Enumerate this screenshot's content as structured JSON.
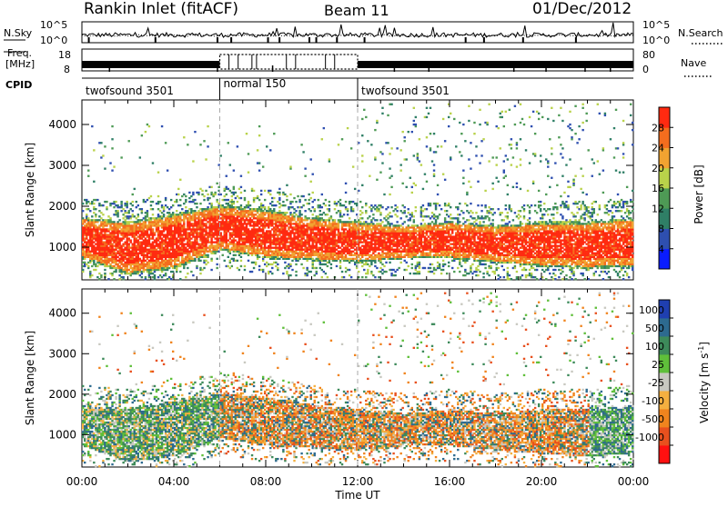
{
  "header": {
    "station": "Rankin Inlet (fitACF)",
    "beam": "Beam 11",
    "date": "01/Dec/2012"
  },
  "top_panels": {
    "nsky_label": "N.Sky",
    "nsearch_label": "N.Search",
    "log_top_tick": "10^5",
    "log_bottom_tick": "10^0",
    "freq_label_line1": "Freq.",
    "freq_label_line2": "[MHz]",
    "freq_ticks": [
      "18",
      "8"
    ],
    "nave_label": "Nave",
    "nave_ticks": [
      "80",
      "0"
    ],
    "cpid_label": "CPID",
    "modes": [
      {
        "name": "twofsound 3501",
        "start_hour": 0,
        "end_hour": 6
      },
      {
        "name": "normal 150",
        "start_hour": 6,
        "end_hour": 12
      },
      {
        "name": "twofsound 3501",
        "start_hour": 12,
        "end_hour": 24
      }
    ]
  },
  "chart_data": [
    {
      "type": "heatmap",
      "name": "power",
      "ylabel": "Slant Range [km]",
      "colorbar_label": "Power [dB]",
      "xlim_hours": [
        0,
        24
      ],
      "ylim_km": [
        200,
        4600
      ],
      "yticks": [
        1000,
        2000,
        3000,
        4000
      ],
      "colorbar_ticks": [
        "4",
        "8",
        "12",
        "16",
        "20",
        "24",
        "28"
      ],
      "colors": [
        "#0a1cff",
        "#2e4fb0",
        "#2f7f66",
        "#4e9a55",
        "#b9d24a",
        "#f1a331",
        "#f46d1e",
        "#ff2a10"
      ],
      "main_band": [
        {
          "hour": 0.0,
          "lo_km": 700,
          "hi_km": 1700
        },
        {
          "hour": 2.0,
          "lo_km": 300,
          "hi_km": 1600
        },
        {
          "hour": 4.0,
          "lo_km": 450,
          "hi_km": 1800
        },
        {
          "hour": 6.0,
          "lo_km": 900,
          "hi_km": 2000
        },
        {
          "hour": 8.0,
          "lo_km": 700,
          "hi_km": 1900
        },
        {
          "hour": 10.0,
          "lo_km": 650,
          "hi_km": 1700
        },
        {
          "hour": 12.0,
          "lo_km": 600,
          "hi_km": 1600
        },
        {
          "hour": 14.0,
          "lo_km": 700,
          "hi_km": 1500
        },
        {
          "hour": 16.0,
          "lo_km": 700,
          "hi_km": 1600
        },
        {
          "hour": 18.0,
          "lo_km": 600,
          "hi_km": 1500
        },
        {
          "hour": 20.0,
          "lo_km": 500,
          "hi_km": 1600
        },
        {
          "hour": 22.0,
          "lo_km": 450,
          "hi_km": 1600
        },
        {
          "hour": 24.0,
          "lo_km": 500,
          "hi_km": 1700
        }
      ]
    },
    {
      "type": "heatmap",
      "name": "velocity",
      "ylabel": "Slant Range [km]",
      "xlabel": "Time UT",
      "xticks": [
        "00:00",
        "04:00",
        "08:00",
        "12:00",
        "16:00",
        "20:00",
        "00:00"
      ],
      "xlim_hours": [
        0,
        24
      ],
      "ylim_km": [
        200,
        4600
      ],
      "yticks": [
        1000,
        2000,
        3000,
        4000
      ],
      "colorbar_label": "Velocity [m s^-1]",
      "colorbar_ticks": [
        "1000",
        "500",
        "100",
        "25",
        "-25",
        "-100",
        "-500",
        "-1000"
      ],
      "colors": [
        "#1f3fb0",
        "#2d6a8f",
        "#3d8a5a",
        "#5fbf3a",
        "#c8c8c0",
        "#f4b040",
        "#f0841e",
        "#e8501e",
        "#ff1010"
      ]
    }
  ]
}
